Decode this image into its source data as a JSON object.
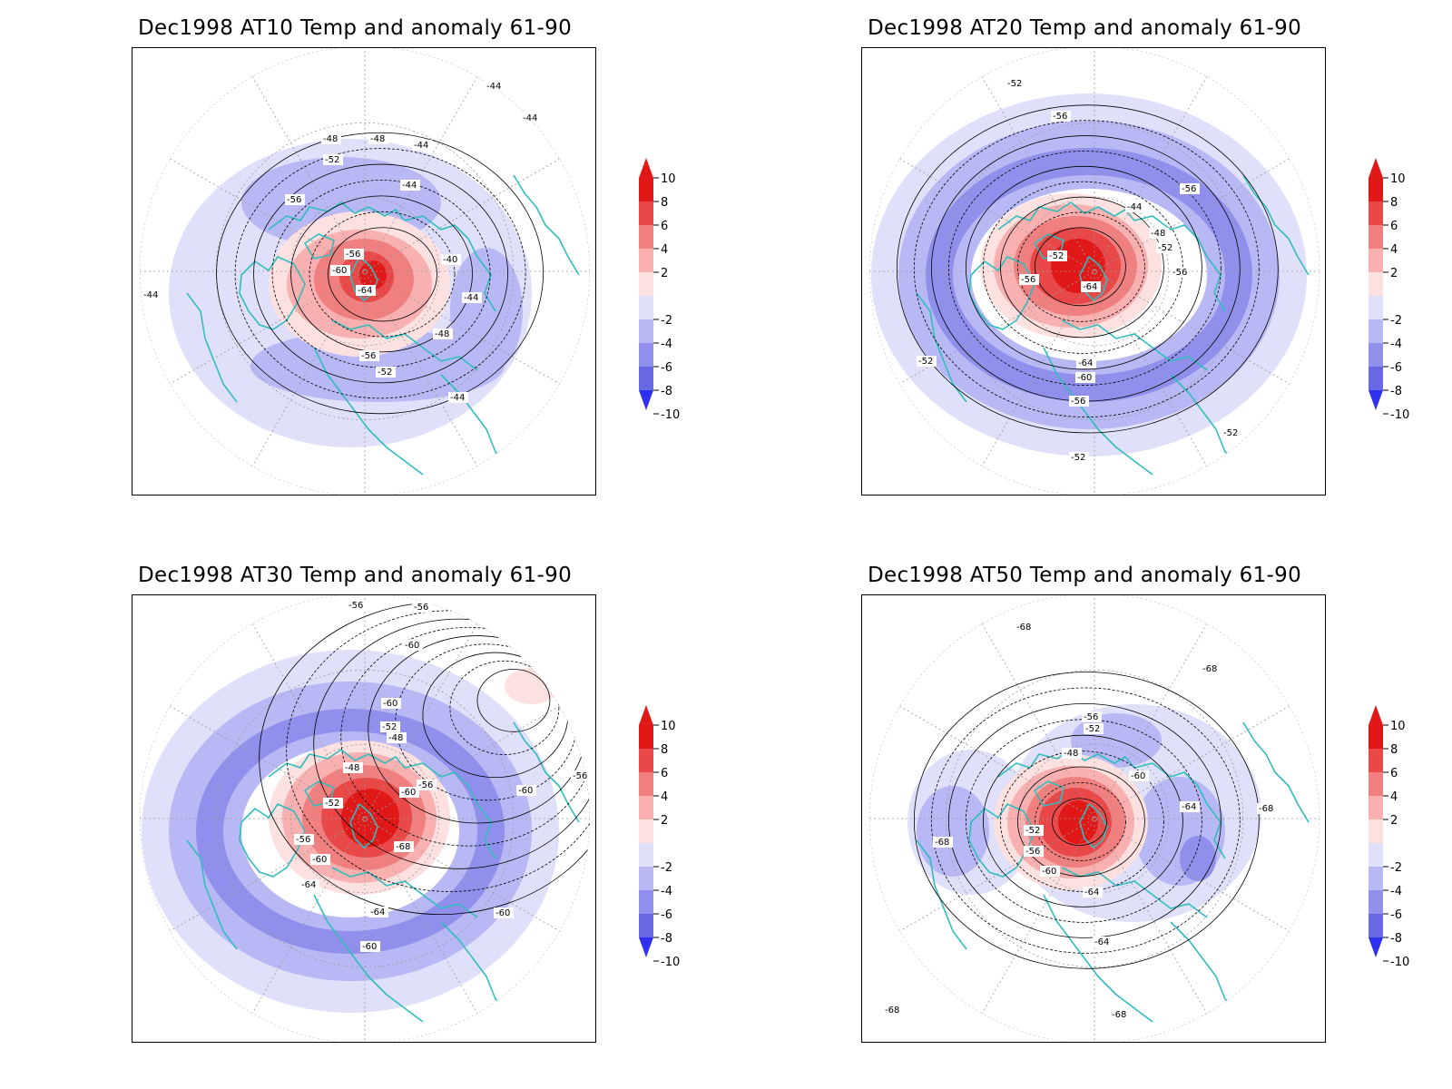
{
  "colors": {
    "coastline": "#2fbdbd",
    "positive_scale": [
      "#fde0e0",
      "#f8b0b0",
      "#f08080",
      "#e84848",
      "#e01818"
    ],
    "negative_scale": [
      "#e0e0fa",
      "#b8b8f4",
      "#9090ec",
      "#6868e4",
      "#3030f0"
    ]
  },
  "colorbar": {
    "tick_labels": [
      "10",
      "8",
      "6",
      "4",
      "2",
      "-2",
      "-4",
      "-6",
      "-8",
      "-10"
    ]
  },
  "panels": [
    {
      "title": "Dec1998 AT10 Temp and anomaly 61-90",
      "contour_labels": [
        "-44",
        "-44",
        "-44",
        "-48",
        "-48",
        "-52",
        "-56",
        "-44",
        "-40",
        "-56",
        "-60",
        "-64",
        "-44",
        "-48",
        "-56",
        "-52",
        "-44",
        "-44"
      ]
    },
    {
      "title": "Dec1998 AT20 Temp and anomaly 61-90",
      "contour_labels": [
        "-52",
        "-56",
        "-56",
        "-44",
        "-48",
        "-52",
        "-56",
        "-52",
        "-56",
        "-64",
        "-64",
        "-60",
        "-56",
        "-52",
        "-52",
        "-52"
      ]
    },
    {
      "title": "Dec1998 AT30 Temp and anomaly 61-90",
      "contour_labels": [
        "-56",
        "-56",
        "-60",
        "-60",
        "-52",
        "-48",
        "-48",
        "-56",
        "-60",
        "-52",
        "-56",
        "-68",
        "-60",
        "-64",
        "-64",
        "-60",
        "-60",
        "-56",
        "-60"
      ]
    },
    {
      "title": "Dec1998 AT50 Temp and anomaly 61-90",
      "contour_labels": [
        "-68",
        "-68",
        "-56",
        "-52",
        "-48",
        "-60",
        "-64",
        "-68",
        "-52",
        "-56",
        "-60",
        "-68",
        "-64",
        "-64",
        "-68",
        "-68"
      ]
    }
  ]
}
